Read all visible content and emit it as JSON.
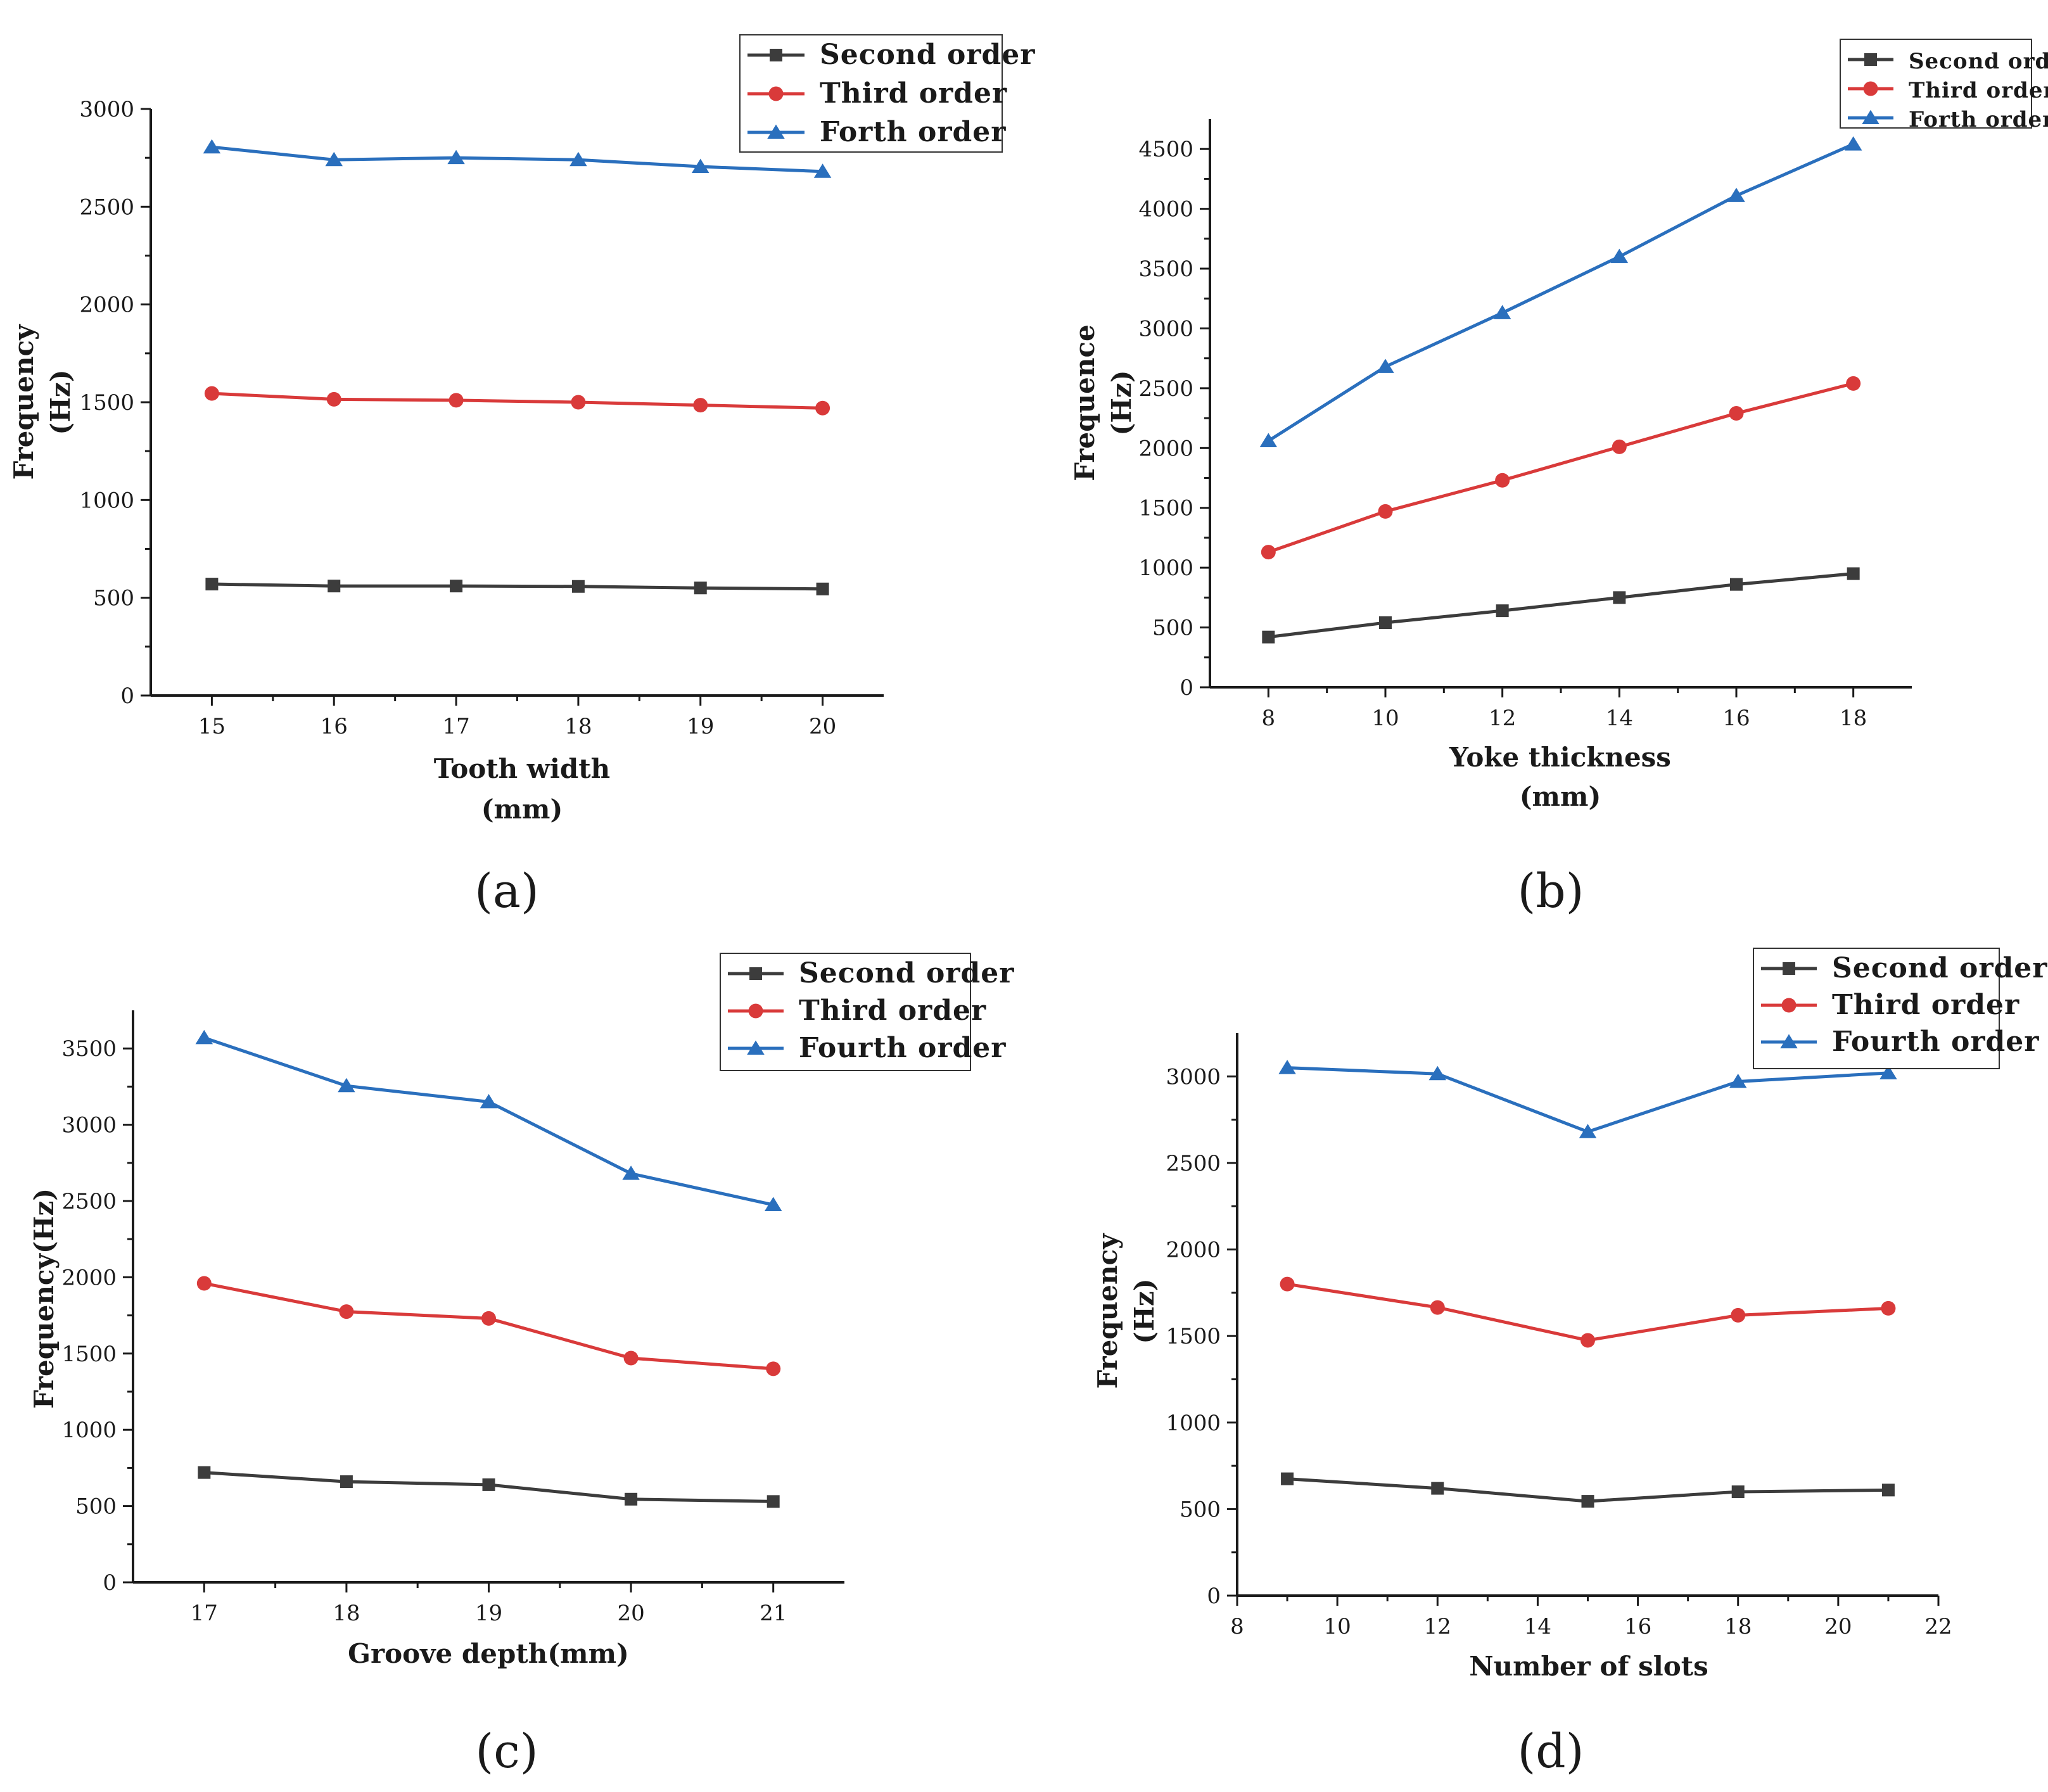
{
  "colors": {
    "second": "#3c3c3c",
    "third": "#d93a3a",
    "fourth": "#2a6fbd",
    "axis": "#1a1a1a"
  },
  "chart_data": [
    {
      "type": "line",
      "panel_label": "(a)",
      "xlabel": [
        "Tooth width",
        "(mm)"
      ],
      "ylabel": [
        "Frequency",
        "(Hz)"
      ],
      "x": [
        15,
        16,
        17,
        18,
        19,
        20
      ],
      "xticks": [
        "15",
        "16",
        "17",
        "18",
        "19",
        "20"
      ],
      "xlim": [
        14.5,
        20.5
      ],
      "ylim": [
        0,
        3000
      ],
      "yticks": [
        "0",
        "500",
        "1000",
        "1500",
        "2000",
        "2500",
        "3000"
      ],
      "legend_position": "top-right",
      "series": [
        {
          "name": "Second order",
          "marker": "square",
          "values": [
            570,
            560,
            560,
            558,
            550,
            545
          ]
        },
        {
          "name": "Third order",
          "marker": "circle",
          "values": [
            1545,
            1515,
            1510,
            1500,
            1485,
            1470
          ]
        },
        {
          "name": "Forth order",
          "marker": "triangle",
          "values": [
            2805,
            2740,
            2750,
            2740,
            2705,
            2680
          ]
        }
      ]
    },
    {
      "type": "line",
      "panel_label": "(b)",
      "xlabel": [
        "Yoke thickness",
        "(mm)"
      ],
      "ylabel": [
        "Frequence",
        "(Hz)"
      ],
      "x": [
        8,
        10,
        12,
        14,
        16,
        18
      ],
      "xticks": [
        "8",
        "10",
        "12",
        "14",
        "16",
        "18"
      ],
      "xlim": [
        7,
        19
      ],
      "ylim": [
        0,
        4750
      ],
      "yticks": [
        "0",
        "500",
        "1000",
        "1500",
        "2000",
        "2500",
        "3000",
        "3500",
        "4000",
        "4500"
      ],
      "legend_position": "top-right",
      "series": [
        {
          "name": "Second order",
          "marker": "square",
          "values": [
            420,
            540,
            640,
            750,
            860,
            950
          ]
        },
        {
          "name": "Third order",
          "marker": "circle",
          "values": [
            1130,
            1470,
            1730,
            2010,
            2290,
            2540
          ]
        },
        {
          "name": "Forth order",
          "marker": "triangle",
          "values": [
            2060,
            2680,
            3130,
            3600,
            4110,
            4540
          ]
        }
      ]
    },
    {
      "type": "line",
      "panel_label": "(c)",
      "xlabel": [
        "Groove depth(mm)"
      ],
      "ylabel": [
        "Frequency(Hz)"
      ],
      "x": [
        17,
        18,
        19,
        20,
        21
      ],
      "xticks": [
        "17",
        "18",
        "19",
        "20",
        "21"
      ],
      "xlim": [
        16.5,
        21.5
      ],
      "ylim": [
        0,
        3750
      ],
      "yticks": [
        "0",
        "500",
        "1000",
        "1500",
        "2000",
        "2500",
        "3000",
        "3500"
      ],
      "legend_position": "top-right",
      "series": [
        {
          "name": "Second order",
          "marker": "square",
          "values": [
            720,
            660,
            640,
            545,
            530
          ]
        },
        {
          "name": "Third order",
          "marker": "circle",
          "values": [
            1960,
            1775,
            1730,
            1470,
            1400
          ]
        },
        {
          "name": "Fourth order",
          "marker": "triangle",
          "values": [
            3570,
            3255,
            3150,
            2680,
            2475
          ]
        }
      ]
    },
    {
      "type": "line",
      "panel_label": "(d)",
      "xlabel": [
        "Number of slots"
      ],
      "ylabel": [
        "Frequency",
        "(Hz)"
      ],
      "x": [
        9,
        12,
        15,
        18,
        21
      ],
      "xticks": [
        "8",
        "10",
        "12",
        "14",
        "16",
        "18",
        "20",
        "22"
      ],
      "xtick_values": [
        8,
        10,
        12,
        14,
        16,
        18,
        20,
        22
      ],
      "xlim": [
        8,
        22
      ],
      "ylim": [
        0,
        3250
      ],
      "yticks": [
        "0",
        "500",
        "1000",
        "1500",
        "2000",
        "2500",
        "3000"
      ],
      "legend_position": "top-right",
      "series": [
        {
          "name": "Second order",
          "marker": "square",
          "values": [
            675,
            620,
            545,
            600,
            610
          ]
        },
        {
          "name": "Third order",
          "marker": "circle",
          "values": [
            1800,
            1665,
            1475,
            1620,
            1660
          ]
        },
        {
          "name": "Fourth order",
          "marker": "triangle",
          "values": [
            3050,
            3015,
            2680,
            2970,
            3020
          ]
        }
      ]
    }
  ]
}
